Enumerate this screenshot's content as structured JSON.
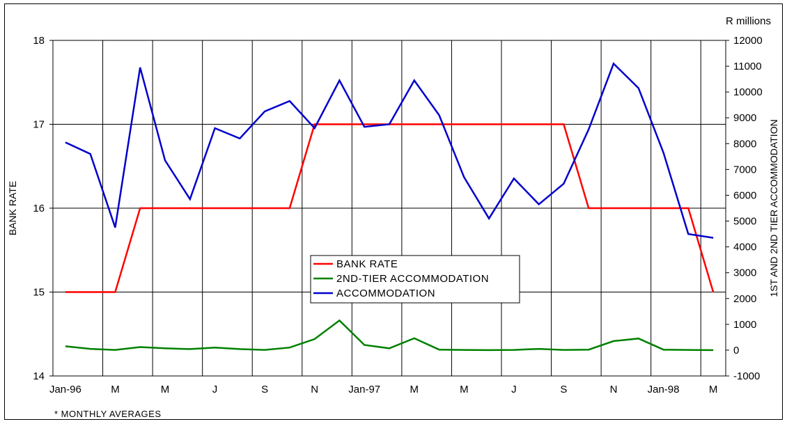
{
  "chart_data": {
    "type": "line",
    "x": [
      "Jan-96",
      "Feb-96",
      "Mar-96",
      "Apr-96",
      "May-96",
      "Jun-96",
      "Jul-96",
      "Aug-96",
      "Sep-96",
      "Oct-96",
      "Nov-96",
      "Dec-96",
      "Jan-97",
      "Feb-97",
      "Mar-97",
      "Apr-97",
      "May-97",
      "Jun-97",
      "Jul-97",
      "Aug-97",
      "Sep-97",
      "Oct-97",
      "Nov-97",
      "Dec-97",
      "Jan-98",
      "Feb-98",
      "Mar-98"
    ],
    "x_tick_labels": [
      "Jan-96",
      "M",
      "M",
      "J",
      "S",
      "N",
      "Jan-97",
      "M",
      "M",
      "J",
      "S",
      "N",
      "Jan-98",
      "M"
    ],
    "series": [
      {
        "name": "BANK RATE",
        "axis": "left",
        "color": "#ff0000",
        "values": [
          15,
          15,
          15,
          16,
          16,
          16,
          16,
          16,
          16,
          16,
          17,
          17,
          17,
          17,
          17,
          17,
          17,
          17,
          17,
          17,
          17,
          16,
          16,
          16,
          16,
          16,
          15
        ]
      },
      {
        "name": "2ND-TIER ACCOMMODATION",
        "axis": "right",
        "color": "#008000",
        "values": [
          150,
          50,
          10,
          120,
          70,
          40,
          100,
          40,
          10,
          100,
          430,
          1150,
          200,
          70,
          460,
          20,
          10,
          0,
          10,
          50,
          10,
          20,
          350,
          450,
          20,
          10,
          0
        ]
      },
      {
        "name": "ACCOMMODATION",
        "axis": "right",
        "color": "#0000cc",
        "values": [
          8050,
          7600,
          4750,
          10950,
          7350,
          5850,
          8600,
          8200,
          9250,
          9650,
          8600,
          10450,
          8650,
          8750,
          10450,
          9100,
          6700,
          5100,
          6650,
          5650,
          6450,
          8550,
          11100,
          10150,
          7650,
          4500,
          4350
        ]
      }
    ],
    "ylabel_left": "BANK RATE",
    "ylim_left": [
      14,
      18
    ],
    "yticks_left": [
      14,
      15,
      16,
      17,
      18
    ],
    "ylabel_right": "1ST AND 2ND TIER ACCOMMODATION",
    "right_unit_label": "R millions",
    "ylim_right": [
      -1000,
      12000
    ],
    "yticks_right": [
      -1000,
      0,
      1000,
      2000,
      3000,
      4000,
      5000,
      6000,
      7000,
      8000,
      9000,
      10000,
      11000,
      12000
    ],
    "grid": true,
    "legend_position": "center",
    "footnote": "* MONTHLY AVERAGES"
  }
}
